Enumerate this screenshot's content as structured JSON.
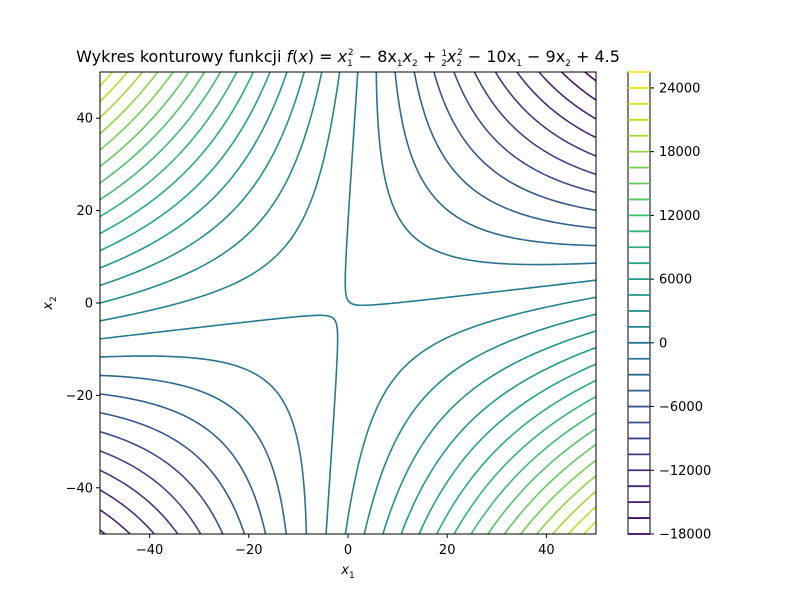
{
  "chart_data": {
    "type": "contour",
    "title": "Wykres konturowy funkcji f(x) = x₁² − 8x₁x₂ + ½x₂² − 10x₁ − 9x₂ + 4.5",
    "title_parts": {
      "prefix": "Wykres konturowy funkcji ",
      "f": "f",
      "x": "x",
      "eq": "= ",
      "t1": "x",
      "t2": "− 8x",
      "t3": "x",
      "half_num": "1",
      "half_den": "2",
      "t4": "x",
      "t5": "− 10x",
      "t6": "− 9x",
      "t7": "+ 4.5",
      "sub1": "1",
      "sub2": "2",
      "sup2": "2"
    },
    "function": {
      "a11": 1,
      "a12": -8,
      "a22": 0.5,
      "b1": -10,
      "b2": -9,
      "c": 4.5
    },
    "xlabel": "x₁",
    "ylabel": "x₂",
    "xlabel_main": "x",
    "xlabel_sub": "1",
    "ylabel_main": "x",
    "ylabel_sub": "2",
    "xlim": [
      -50,
      50
    ],
    "ylim": [
      -50,
      50
    ],
    "xticks": [
      -40,
      -20,
      0,
      20,
      40
    ],
    "yticks": [
      -40,
      -20,
      0,
      20,
      40
    ],
    "xtick_labels": [
      "−40",
      "−20",
      "0",
      "20",
      "40"
    ],
    "ytick_labels": [
      "−40",
      "−20",
      "0",
      "20",
      "40"
    ],
    "levels": [
      -18000,
      -16500,
      -15000,
      -13500,
      -12000,
      -10500,
      -9000,
      -7500,
      -6000,
      -4500,
      -3000,
      -1500,
      0,
      1500,
      3000,
      4500,
      6000,
      7500,
      9000,
      10500,
      12000,
      13500,
      15000,
      16500,
      18000,
      19500,
      21000,
      22500,
      24000,
      25500
    ],
    "colorbar_ticks": [
      -18000,
      -12000,
      -6000,
      0,
      6000,
      12000,
      18000,
      24000
    ],
    "colorbar_tick_labels": [
      "−18000",
      "−12000",
      "−6000",
      "0",
      "6000",
      "12000",
      "18000",
      "24000"
    ],
    "colormap": "viridis",
    "grid": false
  }
}
